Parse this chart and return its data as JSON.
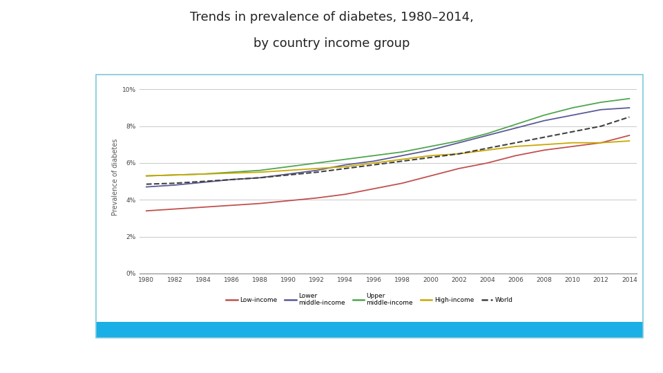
{
  "title_line1": "Trends in prevalence of diabetes, 1980–2014,",
  "title_line2": "by country income group",
  "years": [
    1980,
    1982,
    1984,
    1986,
    1988,
    1990,
    1992,
    1994,
    1996,
    1998,
    2000,
    2002,
    2004,
    2006,
    2008,
    2010,
    2012,
    2014
  ],
  "low_income": [
    3.4,
    3.5,
    3.6,
    3.7,
    3.8,
    3.95,
    4.1,
    4.3,
    4.6,
    4.9,
    5.3,
    5.7,
    6.0,
    6.4,
    6.7,
    6.9,
    7.1,
    7.5
  ],
  "lower_middle_income": [
    4.7,
    4.8,
    4.95,
    5.1,
    5.2,
    5.4,
    5.6,
    5.9,
    6.1,
    6.4,
    6.7,
    7.1,
    7.5,
    7.9,
    8.3,
    8.6,
    8.9,
    9.0
  ],
  "upper_middle_income": [
    5.3,
    5.35,
    5.4,
    5.5,
    5.6,
    5.8,
    6.0,
    6.2,
    6.4,
    6.6,
    6.9,
    7.2,
    7.6,
    8.1,
    8.6,
    9.0,
    9.3,
    9.5
  ],
  "high_income": [
    5.3,
    5.35,
    5.4,
    5.45,
    5.5,
    5.6,
    5.7,
    5.8,
    6.0,
    6.2,
    6.4,
    6.5,
    6.7,
    6.9,
    7.0,
    7.1,
    7.1,
    7.2
  ],
  "world": [
    4.85,
    4.9,
    5.0,
    5.1,
    5.2,
    5.35,
    5.5,
    5.7,
    5.9,
    6.1,
    6.3,
    6.5,
    6.8,
    7.1,
    7.4,
    7.7,
    8.0,
    8.5
  ],
  "colors": {
    "low_income": "#C0504D",
    "lower_middle_income": "#595996",
    "upper_middle_income": "#4EA54E",
    "high_income": "#C9A800",
    "world": "#404040"
  },
  "legend_labels": [
    "Low-income",
    "Lower\nmiddle-income",
    "Upper\nmiddle-income",
    "High-income",
    "World"
  ],
  "ylabel": "Prevalence of diabetes",
  "yticks": [
    0,
    2,
    4,
    6,
    8,
    10
  ],
  "ytick_labels": [
    "0%",
    "2%",
    "4%",
    "6%",
    "8%",
    "10%"
  ],
  "xtick_years": [
    1980,
    1982,
    1984,
    1986,
    1988,
    1990,
    1992,
    1994,
    1996,
    1998,
    2000,
    2002,
    2004,
    2006,
    2008,
    2010,
    2012,
    2014
  ],
  "ylim": [
    0,
    10.5
  ],
  "xlim": [
    1979.5,
    2014.5
  ],
  "border_color": "#7EC8D8",
  "bottom_bar_color": "#1AAFE6",
  "background_color": "#FFFFFF",
  "chart_bg_color": "#FFFFFF",
  "grid_color": "#C8C8C8",
  "title_fontsize": 13,
  "axis_label_fontsize": 7,
  "tick_fontsize": 6.5,
  "legend_fontsize": 6.5
}
